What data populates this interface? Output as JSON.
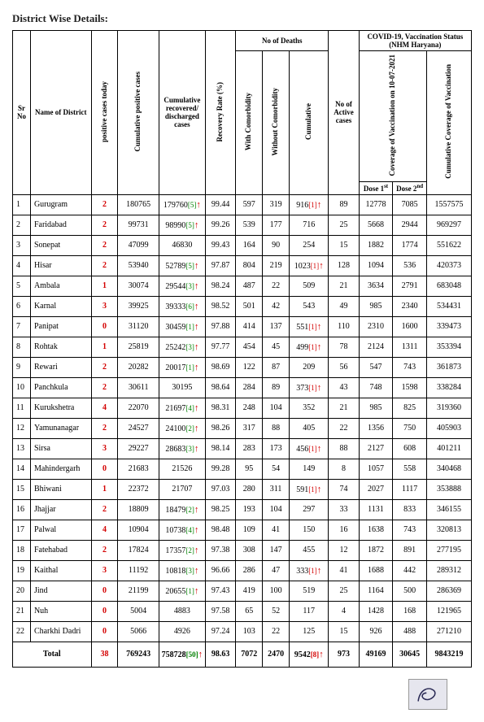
{
  "title": "District Wise Details:",
  "headers": {
    "sr": "Sr No",
    "district": "Name of District",
    "pct": "positive cases today",
    "cum_pos": "Cumulative positive cases",
    "cum_rec": "Cumulative recovered/ discharged cases",
    "rr": "Recovery Rate (%)",
    "deaths": "No of Deaths",
    "d_with": "With Comorbidity",
    "d_without": "Without Comorbidity",
    "d_cum": "Cumulative",
    "active": "No of Active cases",
    "vac_group": "COVID-19, Vaccination Status (NHM Haryana)",
    "vac_cov": "Coverage of Vaccination on 10-07-2021",
    "dose1": "Dose 1",
    "dose1_sup": "st",
    "dose2": "Dose 2",
    "dose2_sup": "nd",
    "vac_cum": "Cumulative Coverage of Vaccination"
  },
  "rows": [
    {
      "sr": "1",
      "name": "Gurugram",
      "pct": "2",
      "cum": "180765",
      "rec": "179760",
      "rec_sup": "[5]",
      "rec_arrow": true,
      "rr": "99.44",
      "d1": "597",
      "d2": "319",
      "dcum": "916",
      "dcum_sup": "[1]",
      "dcum_arrow": true,
      "act": "89",
      "v1": "12778",
      "v2": "7085",
      "v3": "1557575"
    },
    {
      "sr": "2",
      "name": "Faridabad",
      "pct": "2",
      "cum": "99731",
      "rec": "98990",
      "rec_sup": "[5]",
      "rec_arrow": true,
      "rr": "99.26",
      "d1": "539",
      "d2": "177",
      "dcum": "716",
      "dcum_sup": "",
      "dcum_arrow": false,
      "act": "25",
      "v1": "5668",
      "v2": "2944",
      "v3": "969297"
    },
    {
      "sr": "3",
      "name": "Sonepat",
      "pct": "2",
      "cum": "47099",
      "rec": "46830",
      "rec_sup": "",
      "rec_arrow": false,
      "rr": "99.43",
      "d1": "164",
      "d2": "90",
      "dcum": "254",
      "dcum_sup": "",
      "dcum_arrow": false,
      "act": "15",
      "v1": "1882",
      "v2": "1774",
      "v3": "551622"
    },
    {
      "sr": "4",
      "name": "Hisar",
      "pct": "2",
      "cum": "53940",
      "rec": "52789",
      "rec_sup": "[5]",
      "rec_arrow": true,
      "rr": "97.87",
      "d1": "804",
      "d2": "219",
      "dcum": "1023",
      "dcum_sup": "[1]",
      "dcum_arrow": true,
      "act": "128",
      "v1": "1094",
      "v2": "536",
      "v3": "420373"
    },
    {
      "sr": "5",
      "name": "Ambala",
      "pct": "1",
      "cum": "30074",
      "rec": "29544",
      "rec_sup": "[3]",
      "rec_arrow": true,
      "rr": "98.24",
      "d1": "487",
      "d2": "22",
      "dcum": "509",
      "dcum_sup": "",
      "dcum_arrow": false,
      "act": "21",
      "v1": "3634",
      "v2": "2791",
      "v3": "683048"
    },
    {
      "sr": "6",
      "name": "Karnal",
      "pct": "3",
      "cum": "39925",
      "rec": "39333",
      "rec_sup": "[6]",
      "rec_arrow": true,
      "rr": "98.52",
      "d1": "501",
      "d2": "42",
      "dcum": "543",
      "dcum_sup": "",
      "dcum_arrow": false,
      "act": "49",
      "v1": "985",
      "v2": "2340",
      "v3": "534431"
    },
    {
      "sr": "7",
      "name": "Panipat",
      "pct": "0",
      "cum": "31120",
      "rec": "30459",
      "rec_sup": "[1]",
      "rec_arrow": true,
      "rr": "97.88",
      "d1": "414",
      "d2": "137",
      "dcum": "551",
      "dcum_sup": "[1]",
      "dcum_arrow": true,
      "act": "110",
      "v1": "2310",
      "v2": "1600",
      "v3": "339473"
    },
    {
      "sr": "8",
      "name": "Rohtak",
      "pct": "1",
      "cum": "25819",
      "rec": "25242",
      "rec_sup": "[3]",
      "rec_arrow": true,
      "rr": "97.77",
      "d1": "454",
      "d2": "45",
      "dcum": "499",
      "dcum_sup": "[1]",
      "dcum_arrow": true,
      "act": "78",
      "v1": "2124",
      "v2": "1311",
      "v3": "353394"
    },
    {
      "sr": "9",
      "name": "Rewari",
      "pct": "2",
      "cum": "20282",
      "rec": "20017",
      "rec_sup": "[1]",
      "rec_arrow": true,
      "rr": "98.69",
      "d1": "122",
      "d2": "87",
      "dcum": "209",
      "dcum_sup": "",
      "dcum_arrow": false,
      "act": "56",
      "v1": "547",
      "v2": "743",
      "v3": "361873"
    },
    {
      "sr": "10",
      "name": "Panchkula",
      "pct": "2",
      "cum": "30611",
      "rec": "30195",
      "rec_sup": "",
      "rec_arrow": false,
      "rr": "98.64",
      "d1": "284",
      "d2": "89",
      "dcum": "373",
      "dcum_sup": "[1]",
      "dcum_arrow": true,
      "act": "43",
      "v1": "748",
      "v2": "1598",
      "v3": "338284"
    },
    {
      "sr": "11",
      "name": "Kurukshetra",
      "pct": "4",
      "cum": "22070",
      "rec": "21697",
      "rec_sup": "[4]",
      "rec_arrow": true,
      "rr": "98.31",
      "d1": "248",
      "d2": "104",
      "dcum": "352",
      "dcum_sup": "",
      "dcum_arrow": false,
      "act": "21",
      "v1": "985",
      "v2": "825",
      "v3": "319360"
    },
    {
      "sr": "12",
      "name": "Yamunanagar",
      "pct": "2",
      "cum": "24527",
      "rec": "24100",
      "rec_sup": "[2]",
      "rec_arrow": true,
      "rr": "98.26",
      "d1": "317",
      "d2": "88",
      "dcum": "405",
      "dcum_sup": "",
      "dcum_arrow": false,
      "act": "22",
      "v1": "1356",
      "v2": "750",
      "v3": "405903"
    },
    {
      "sr": "13",
      "name": "Sirsa",
      "pct": "3",
      "cum": "29227",
      "rec": "28683",
      "rec_sup": "[3]",
      "rec_arrow": true,
      "rr": "98.14",
      "d1": "283",
      "d2": "173",
      "dcum": "456",
      "dcum_sup": "[1]",
      "dcum_arrow": true,
      "act": "88",
      "v1": "2127",
      "v2": "608",
      "v3": "401211"
    },
    {
      "sr": "14",
      "name": "Mahindergarh",
      "pct": "0",
      "cum": "21683",
      "rec": "21526",
      "rec_sup": "",
      "rec_arrow": false,
      "rr": "99.28",
      "d1": "95",
      "d2": "54",
      "dcum": "149",
      "dcum_sup": "",
      "dcum_arrow": false,
      "act": "8",
      "v1": "1057",
      "v2": "558",
      "v3": "340468"
    },
    {
      "sr": "15",
      "name": "Bhiwani",
      "pct": "1",
      "cum": "22372",
      "rec": "21707",
      "rec_sup": "",
      "rec_arrow": false,
      "rr": "97.03",
      "d1": "280",
      "d2": "311",
      "dcum": "591",
      "dcum_sup": "[1]",
      "dcum_arrow": true,
      "act": "74",
      "v1": "2027",
      "v2": "1117",
      "v3": "353888"
    },
    {
      "sr": "16",
      "name": "Jhajjar",
      "pct": "2",
      "cum": "18809",
      "rec": "18479",
      "rec_sup": "[2]",
      "rec_arrow": true,
      "rr": "98.25",
      "d1": "193",
      "d2": "104",
      "dcum": "297",
      "dcum_sup": "",
      "dcum_arrow": false,
      "act": "33",
      "v1": "1131",
      "v2": "833",
      "v3": "346155"
    },
    {
      "sr": "17",
      "name": "Palwal",
      "pct": "4",
      "cum": "10904",
      "rec": "10738",
      "rec_sup": "[4]",
      "rec_arrow": true,
      "rr": "98.48",
      "d1": "109",
      "d2": "41",
      "dcum": "150",
      "dcum_sup": "",
      "dcum_arrow": false,
      "act": "16",
      "v1": "1638",
      "v2": "743",
      "v3": "320813"
    },
    {
      "sr": "18",
      "name": "Fatehabad",
      "pct": "2",
      "cum": "17824",
      "rec": "17357",
      "rec_sup": "[2]",
      "rec_arrow": true,
      "rr": "97.38",
      "d1": "308",
      "d2": "147",
      "dcum": "455",
      "dcum_sup": "",
      "dcum_arrow": false,
      "act": "12",
      "v1": "1872",
      "v2": "891",
      "v3": "277195"
    },
    {
      "sr": "19",
      "name": "Kaithal",
      "pct": "3",
      "cum": "11192",
      "rec": "10818",
      "rec_sup": "[3]",
      "rec_arrow": true,
      "rr": "96.66",
      "d1": "286",
      "d2": "47",
      "dcum": "333",
      "dcum_sup": "[1]",
      "dcum_arrow": true,
      "act": "41",
      "v1": "1688",
      "v2": "442",
      "v3": "289312"
    },
    {
      "sr": "20",
      "name": "Jind",
      "pct": "0",
      "cum": "21199",
      "rec": "20655",
      "rec_sup": "[1]",
      "rec_arrow": true,
      "rr": "97.43",
      "d1": "419",
      "d2": "100",
      "dcum": "519",
      "dcum_sup": "",
      "dcum_arrow": false,
      "act": "25",
      "v1": "1164",
      "v2": "500",
      "v3": "286369"
    },
    {
      "sr": "21",
      "name": "Nuh",
      "pct": "0",
      "cum": "5004",
      "rec": "4883",
      "rec_sup": "",
      "rec_arrow": false,
      "rr": "97.58",
      "d1": "65",
      "d2": "52",
      "dcum": "117",
      "dcum_sup": "",
      "dcum_arrow": false,
      "act": "4",
      "v1": "1428",
      "v2": "168",
      "v3": "121965"
    },
    {
      "sr": "22",
      "name": "Charkhi Dadri",
      "pct": "0",
      "cum": "5066",
      "rec": "4926",
      "rec_sup": "",
      "rec_arrow": false,
      "rr": "97.24",
      "d1": "103",
      "d2": "22",
      "dcum": "125",
      "dcum_sup": "",
      "dcum_arrow": false,
      "act": "15",
      "v1": "926",
      "v2": "488",
      "v3": "271210"
    }
  ],
  "total": {
    "label": "Total",
    "pct": "38",
    "cum": "769243",
    "rec": "758728",
    "rec_sup": "[50]",
    "rec_arrow": true,
    "rr": "98.63",
    "d1": "7072",
    "d2": "2470",
    "dcum": "9542",
    "dcum_sup": "[8]",
    "dcum_arrow": true,
    "act": "973",
    "v1": "49169",
    "v2": "30645",
    "v3": "9843219"
  }
}
